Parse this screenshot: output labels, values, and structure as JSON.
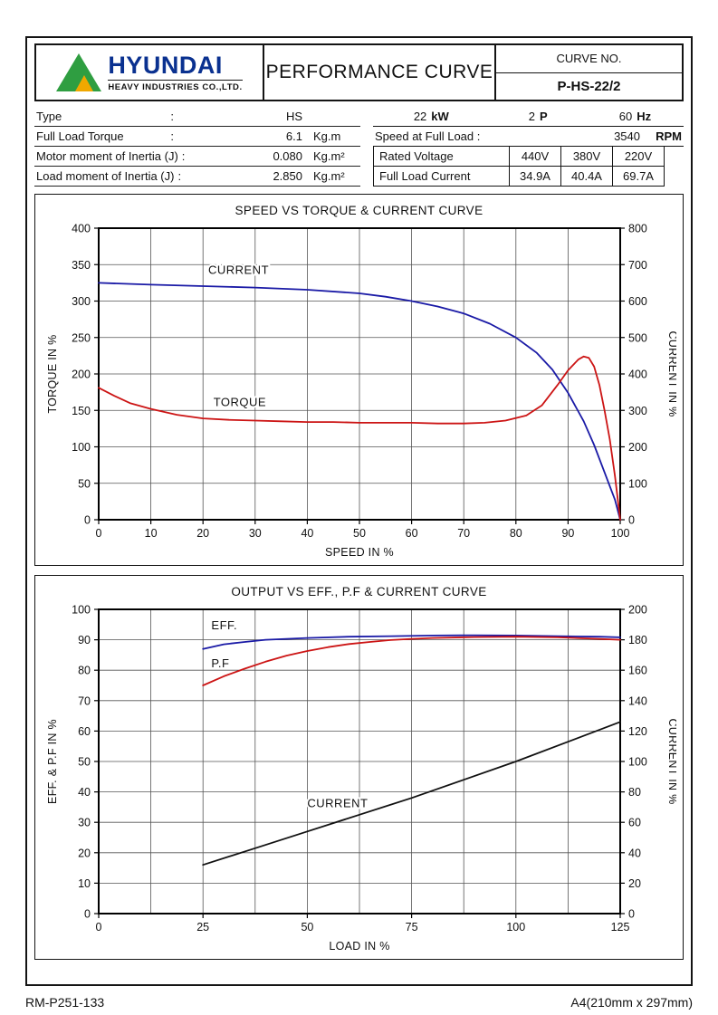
{
  "page": {
    "footer_left": "RM-P251-133",
    "footer_right": "A4(210mm x 297mm)"
  },
  "header": {
    "logo": {
      "brand": "HYUNDAI",
      "sub": "HEAVY INDUSTRIES CO.,LTD.",
      "brand_color": "#0a3190",
      "triangle_green": "#2f9e41",
      "triangle_gold": "#f0a800"
    },
    "title": "PERFORMANCE CURVE",
    "curve_no_label": "CURVE NO.",
    "curve_no_value": "P-HS-22/2"
  },
  "specs_left": {
    "rows": [
      {
        "label": "Type",
        "colon": ":",
        "value": "HS",
        "unit": ""
      },
      {
        "label": "Full Load Torque",
        "colon": ":",
        "value": "6.1",
        "unit": "Kg.m"
      },
      {
        "label": "Motor moment of Inertia (J)",
        "colon": ":",
        "value": "0.080",
        "unit": "Kg.m²"
      },
      {
        "label": "Load moment of Inertia (J)",
        "colon": ":",
        "value": "2.850",
        "unit": "Kg.m²"
      }
    ]
  },
  "specs_right": {
    "rating": [
      {
        "value": "22",
        "unit": "kW"
      },
      {
        "value": "2",
        "unit": "P"
      },
      {
        "value": "60",
        "unit": "Hz"
      }
    ],
    "speed": {
      "label": "Speed at Full Load :",
      "value": "3540",
      "unit": "RPM"
    },
    "voltage": {
      "label": "Rated Voltage",
      "values": [
        "440V",
        "380V",
        "220V"
      ]
    },
    "current": {
      "label": "Full Load Current",
      "values": [
        "34.9A",
        "40.4A",
        "69.7A"
      ]
    }
  },
  "chart_data": [
    {
      "type": "line",
      "title": "SPEED VS TORQUE & CURRENT CURVE",
      "xlabel": "SPEED IN %",
      "ylabel_left": "TORQUE IN %",
      "ylabel_right": "CURRENT IN %",
      "xlim": [
        0,
        100
      ],
      "ylim_left": [
        0,
        400
      ],
      "ylim_right": [
        0,
        800
      ],
      "xticks": [
        0,
        10,
        20,
        30,
        40,
        50,
        60,
        70,
        80,
        90,
        100
      ],
      "yticks_left": [
        0,
        50,
        100,
        150,
        200,
        250,
        300,
        350,
        400
      ],
      "yticks_right": [
        0,
        100,
        200,
        300,
        400,
        500,
        600,
        700,
        800
      ],
      "grid": true,
      "series": [
        {
          "name": "CURRENT",
          "axis": "right",
          "color": "#1a1aa6",
          "points": [
            [
              0,
              650
            ],
            [
              10,
              645
            ],
            [
              20,
              641
            ],
            [
              30,
              637
            ],
            [
              40,
              631
            ],
            [
              50,
              621
            ],
            [
              55,
              612
            ],
            [
              60,
              600
            ],
            [
              65,
              585
            ],
            [
              70,
              566
            ],
            [
              75,
              538
            ],
            [
              80,
              500
            ],
            [
              84,
              458
            ],
            [
              87,
              412
            ],
            [
              90,
              348
            ],
            [
              93,
              270
            ],
            [
              95,
              205
            ],
            [
              97,
              130
            ],
            [
              99,
              55
            ],
            [
              100,
              0
            ]
          ]
        },
        {
          "name": "TORQUE",
          "axis": "left",
          "color": "#cc1414",
          "points": [
            [
              0,
              181
            ],
            [
              3,
              170
            ],
            [
              6,
              160
            ],
            [
              10,
              152
            ],
            [
              15,
              144
            ],
            [
              20,
              139
            ],
            [
              25,
              137
            ],
            [
              30,
              136
            ],
            [
              35,
              135
            ],
            [
              40,
              134
            ],
            [
              45,
              134
            ],
            [
              50,
              133
            ],
            [
              55,
              133
            ],
            [
              60,
              133
            ],
            [
              65,
              132
            ],
            [
              70,
              132
            ],
            [
              74,
              133
            ],
            [
              78,
              136
            ],
            [
              82,
              143
            ],
            [
              85,
              157
            ],
            [
              88,
              185
            ],
            [
              90,
              205
            ],
            [
              92,
              220
            ],
            [
              93,
              224
            ],
            [
              94,
              222
            ],
            [
              95,
              210
            ],
            [
              96,
              185
            ],
            [
              97,
              150
            ],
            [
              98,
              110
            ],
            [
              99,
              60
            ],
            [
              100,
              0
            ]
          ]
        }
      ],
      "annotations": [
        {
          "text": "CURRENT",
          "x": 21,
          "y": 337
        },
        {
          "text": "TORQUE",
          "x": 22,
          "y": 156
        }
      ]
    },
    {
      "type": "line",
      "title": "OUTPUT VS EFF., P.F & CURRENT CURVE",
      "xlabel": "LOAD IN %",
      "ylabel_left": "EFF. & P.F IN %",
      "ylabel_right": "CURRENT IN %",
      "xlim": [
        0,
        125
      ],
      "ylim_left": [
        0,
        100
      ],
      "ylim_right": [
        0,
        200
      ],
      "xticks": [
        0,
        25,
        50,
        75,
        100,
        125
      ],
      "grid_x": [
        0,
        12.5,
        25,
        37.5,
        50,
        62.5,
        75,
        87.5,
        100,
        112.5,
        125
      ],
      "yticks_left": [
        0,
        10,
        20,
        30,
        40,
        50,
        60,
        70,
        80,
        90,
        100
      ],
      "yticks_right": [
        0,
        20,
        40,
        60,
        80,
        100,
        120,
        140,
        160,
        180,
        200
      ],
      "grid": true,
      "series": [
        {
          "name": "EFF.",
          "axis": "left",
          "color": "#1a1aa6",
          "points": [
            [
              25,
              87
            ],
            [
              30,
              88.5
            ],
            [
              35,
              89.3
            ],
            [
              40,
              90
            ],
            [
              50,
              90.6
            ],
            [
              60,
              91
            ],
            [
              70,
              91.2
            ],
            [
              80,
              91.4
            ],
            [
              90,
              91.5
            ],
            [
              100,
              91.4
            ],
            [
              110,
              91.2
            ],
            [
              120,
              91
            ],
            [
              125,
              90.8
            ]
          ]
        },
        {
          "name": "P.F",
          "axis": "left",
          "color": "#cc1414",
          "points": [
            [
              25,
              75
            ],
            [
              30,
              78
            ],
            [
              35,
              80.5
            ],
            [
              40,
              82.8
            ],
            [
              45,
              84.8
            ],
            [
              50,
              86.3
            ],
            [
              55,
              87.6
            ],
            [
              60,
              88.6
            ],
            [
              65,
              89.3
            ],
            [
              70,
              89.9
            ],
            [
              75,
              90.3
            ],
            [
              80,
              90.6
            ],
            [
              90,
              90.9
            ],
            [
              100,
              91
            ],
            [
              110,
              90.8
            ],
            [
              120,
              90.3
            ],
            [
              125,
              90
            ]
          ]
        },
        {
          "name": "CURRENT",
          "axis": "right",
          "color": "#111111",
          "points": [
            [
              25,
              32
            ],
            [
              37.5,
              43
            ],
            [
              50,
              54
            ],
            [
              62.5,
              65
            ],
            [
              75,
              76
            ],
            [
              87.5,
              88
            ],
            [
              100,
              100
            ],
            [
              112.5,
              113
            ],
            [
              125,
              126
            ]
          ]
        }
      ],
      "annotations": [
        {
          "text": "EFF.",
          "x": 27,
          "y": 93.5
        },
        {
          "text": "P.F",
          "x": 27,
          "y": 81
        },
        {
          "text": "CURRENT",
          "x": 50,
          "y": 35
        }
      ]
    }
  ]
}
